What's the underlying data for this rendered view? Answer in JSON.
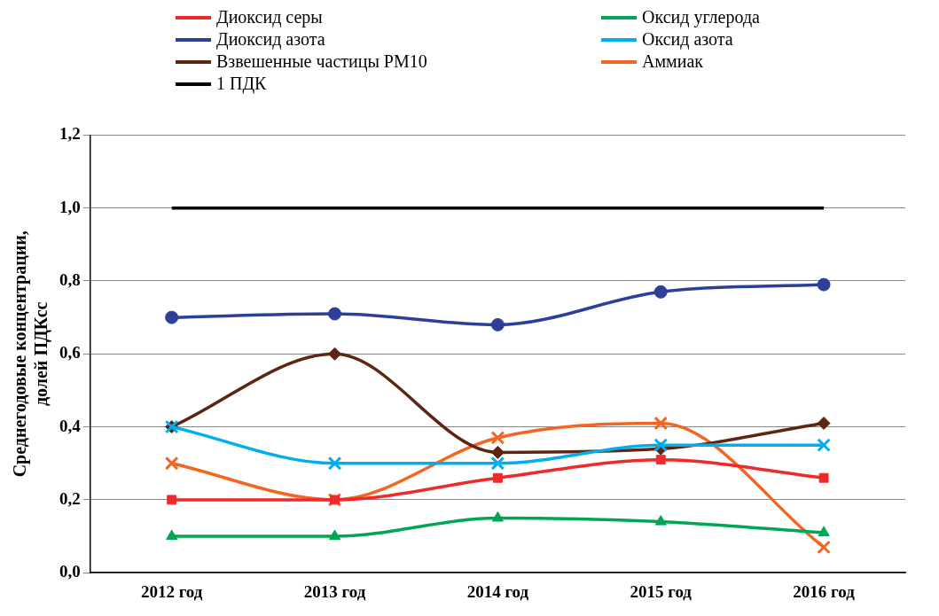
{
  "chart_data": {
    "type": "line",
    "ylabel": "Среднегодовые концентрации, долей ПДКсс",
    "categories": [
      "2012 год",
      "2013 год",
      "2014 год",
      "2015 год",
      "2016 год"
    ],
    "ylim": [
      0,
      1.2
    ],
    "yticks": [
      {
        "value": 0,
        "label": "0,0"
      },
      {
        "value": 0.2,
        "label": "0,2"
      },
      {
        "value": 0.4,
        "label": "0,4"
      },
      {
        "value": 0.6,
        "label": "0,6"
      },
      {
        "value": 0.8,
        "label": "0,8"
      },
      {
        "value": 1,
        "label": "1,0"
      },
      {
        "value": 1.2,
        "label": "1,2"
      }
    ],
    "grid": "y",
    "legend": "top",
    "series": [
      {
        "name": "Диоксид серы",
        "color": "#ee2a2a",
        "marker": "square",
        "values": [
          0.2,
          0.2,
          0.26,
          0.31,
          0.26
        ]
      },
      {
        "name": "Оксид углерода",
        "color": "#00a651",
        "marker": "triangle",
        "values": [
          0.1,
          0.1,
          0.15,
          0.14,
          0.11
        ]
      },
      {
        "name": "Диоксид азота",
        "color": "#2e3f9a",
        "marker": "circle",
        "values": [
          0.7,
          0.71,
          0.68,
          0.77,
          0.79
        ]
      },
      {
        "name": "Оксид азота",
        "color": "#00aeef",
        "marker": "cross",
        "values": [
          0.4,
          0.3,
          0.3,
          0.35,
          0.35
        ]
      },
      {
        "name": "Взвешенные частицы PM10",
        "color": "#5c2612",
        "marker": "diamond",
        "values": [
          0.4,
          0.6,
          0.33,
          0.34,
          0.41
        ]
      },
      {
        "name": "Аммиак",
        "color": "#f26522",
        "marker": "cross",
        "values": [
          0.3,
          0.2,
          0.37,
          0.41,
          0.07
        ]
      },
      {
        "name": "1 ПДК",
        "color": "#000000",
        "marker": "none",
        "values": [
          1,
          1,
          1,
          1,
          1
        ]
      }
    ]
  }
}
